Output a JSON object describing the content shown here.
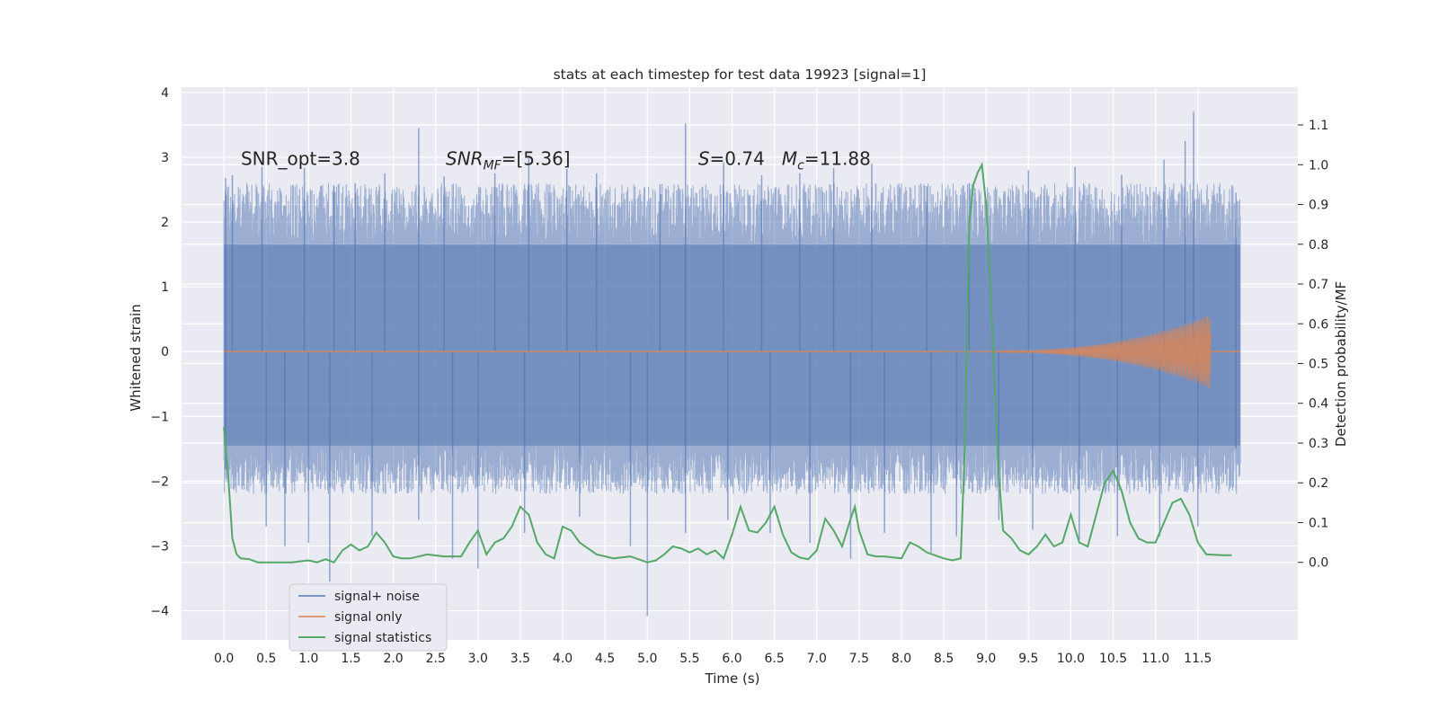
{
  "chart_data": {
    "type": "line",
    "title": "stats at each timestep for test data 19923 [signal=1]",
    "xlabel": "Time (s)",
    "ylabel": "Whitened strain",
    "y2label": "Detection probability/MF",
    "xlim": [
      -0.5,
      12.68
    ],
    "ylim": [
      -4.45,
      4.08
    ],
    "y2lim": [
      -0.195,
      1.195
    ],
    "x_ticks": [
      0.0,
      0.5,
      1.0,
      1.5,
      2.0,
      2.5,
      3.0,
      3.5,
      4.0,
      4.5,
      5.0,
      5.5,
      6.0,
      6.5,
      7.0,
      7.5,
      8.0,
      8.5,
      9.0,
      9.5,
      10.0,
      10.5,
      11.0,
      11.5
    ],
    "x_tick_labels": [
      "0.0",
      "0.5",
      "1.0",
      "1.5",
      "2.0",
      "2.5",
      "3.0",
      "3.5",
      "4.0",
      "4.5",
      "5.0",
      "5.5",
      "6.0",
      "6.5",
      "7.0",
      "7.5",
      "8.0",
      "8.5",
      "9.0",
      "9.5",
      "10.0",
      "10.5",
      "11.0",
      "11.5"
    ],
    "y_ticks": [
      -4,
      -3,
      -2,
      -1,
      0,
      1,
      2,
      3,
      4
    ],
    "y_tick_labels": [
      "−4",
      "−3",
      "−2",
      "−1",
      "0",
      "1",
      "2",
      "3",
      "4"
    ],
    "y2_ticks": [
      0.0,
      0.1,
      0.2,
      0.3,
      0.4,
      0.5,
      0.6,
      0.7,
      0.8,
      0.9,
      1.0,
      1.1
    ],
    "y2_tick_labels": [
      "0.0",
      "0.1",
      "0.2",
      "0.3",
      "0.4",
      "0.5",
      "0.6",
      "0.7",
      "0.8",
      "0.9",
      "1.0",
      "1.1"
    ],
    "grid": true,
    "legend_placement": "lower-left",
    "annotations": [
      {
        "label": "SNR_opt=3.8",
        "x": 0.2,
        "y": 2.88
      },
      {
        "label": "SNR",
        "sub": "MF",
        "rest": "=[5.36]",
        "x": 2.62,
        "y": 2.88
      },
      {
        "label": "S",
        "rest": "=0.74   ",
        "label2": "M",
        "sub2": "c",
        "rest2": "=11.88",
        "x": 5.6,
        "y": 2.88
      }
    ],
    "series": [
      {
        "name": "signal+ noise",
        "color": "#4c72b0",
        "opacity": 0.5,
        "x_range": [
          0.0,
          12.0
        ],
        "core_band": [
          -1.45,
          1.65
        ],
        "spikes": [
          {
            "x": 0.02,
            "y": 2.68
          },
          {
            "x": 0.1,
            "y": 2.72
          },
          {
            "x": 0.45,
            "y": 2.85
          },
          {
            "x": 0.95,
            "y": 2.83
          },
          {
            "x": 1.3,
            "y": 2.55
          },
          {
            "x": 1.55,
            "y": 2.6
          },
          {
            "x": 1.9,
            "y": 2.75
          },
          {
            "x": 2.3,
            "y": 3.45
          },
          {
            "x": 2.6,
            "y": 2.7
          },
          {
            "x": 3.2,
            "y": 2.75
          },
          {
            "x": 3.6,
            "y": 3.03
          },
          {
            "x": 4.05,
            "y": 2.82
          },
          {
            "x": 4.4,
            "y": 2.75
          },
          {
            "x": 5.15,
            "y": 2.58
          },
          {
            "x": 5.45,
            "y": 3.52
          },
          {
            "x": 5.9,
            "y": 2.92
          },
          {
            "x": 6.35,
            "y": 2.72
          },
          {
            "x": 6.8,
            "y": 2.75
          },
          {
            "x": 7.2,
            "y": 2.83
          },
          {
            "x": 7.65,
            "y": 2.9
          },
          {
            "x": 8.3,
            "y": 2.55
          },
          {
            "x": 8.8,
            "y": 2.6
          },
          {
            "x": 9.5,
            "y": 2.8
          },
          {
            "x": 10.05,
            "y": 2.85
          },
          {
            "x": 10.6,
            "y": 2.73
          },
          {
            "x": 11.1,
            "y": 2.96
          },
          {
            "x": 11.35,
            "y": 3.25
          },
          {
            "x": 11.45,
            "y": 3.7
          },
          {
            "x": 11.95,
            "y": 2.45
          },
          {
            "x": 0.02,
            "y": -1.82
          },
          {
            "x": 0.5,
            "y": -2.7
          },
          {
            "x": 0.72,
            "y": -3.0
          },
          {
            "x": 1.0,
            "y": -2.95
          },
          {
            "x": 1.25,
            "y": -3.55
          },
          {
            "x": 1.75,
            "y": -2.85
          },
          {
            "x": 2.3,
            "y": -2.6
          },
          {
            "x": 2.7,
            "y": -3.2
          },
          {
            "x": 3.0,
            "y": -3.35
          },
          {
            "x": 3.55,
            "y": -2.8
          },
          {
            "x": 4.2,
            "y": -2.55
          },
          {
            "x": 4.8,
            "y": -3.0
          },
          {
            "x": 5.0,
            "y": -4.08
          },
          {
            "x": 5.45,
            "y": -2.8
          },
          {
            "x": 5.95,
            "y": -2.6
          },
          {
            "x": 6.45,
            "y": -2.8
          },
          {
            "x": 6.92,
            "y": -2.95
          },
          {
            "x": 7.4,
            "y": -3.2
          },
          {
            "x": 7.8,
            "y": -2.8
          },
          {
            "x": 8.35,
            "y": -3.1
          },
          {
            "x": 8.65,
            "y": -2.85
          },
          {
            "x": 9.15,
            "y": -2.6
          },
          {
            "x": 9.55,
            "y": -2.75
          },
          {
            "x": 10.1,
            "y": -2.9
          },
          {
            "x": 10.55,
            "y": -2.85
          },
          {
            "x": 11.05,
            "y": -2.85
          },
          {
            "x": 11.5,
            "y": -2.7
          },
          {
            "x": 11.95,
            "y": -1.5
          }
        ]
      },
      {
        "name": "signal only",
        "color": "#dd8452",
        "chirp_start": 8.5,
        "chirp_end": 11.65,
        "chirp_peak_amplitude": 0.58,
        "x_range": [
          0.0,
          12.0
        ]
      },
      {
        "name": "signal statistics",
        "color": "#55a868",
        "axis": "right",
        "x": [
          0.0,
          0.05,
          0.1,
          0.15,
          0.2,
          0.3,
          0.4,
          0.5,
          0.6,
          0.8,
          1.0,
          1.1,
          1.2,
          1.3,
          1.4,
          1.5,
          1.6,
          1.7,
          1.8,
          1.9,
          2.0,
          2.1,
          2.2,
          2.4,
          2.6,
          2.8,
          2.9,
          3.0,
          3.1,
          3.2,
          3.3,
          3.4,
          3.5,
          3.6,
          3.7,
          3.8,
          3.9,
          4.0,
          4.1,
          4.2,
          4.4,
          4.6,
          4.8,
          5.0,
          5.1,
          5.2,
          5.3,
          5.4,
          5.5,
          5.6,
          5.7,
          5.8,
          5.9,
          6.0,
          6.1,
          6.2,
          6.3,
          6.4,
          6.5,
          6.6,
          6.7,
          6.8,
          6.9,
          7.0,
          7.1,
          7.2,
          7.3,
          7.4,
          7.45,
          7.5,
          7.6,
          7.7,
          7.8,
          8.0,
          8.1,
          8.2,
          8.3,
          8.5,
          8.6,
          8.7,
          8.75,
          8.8,
          8.85,
          8.9,
          8.95,
          9.0,
          9.05,
          9.1,
          9.15,
          9.2,
          9.3,
          9.4,
          9.5,
          9.6,
          9.7,
          9.8,
          9.9,
          10.0,
          10.1,
          10.2,
          10.3,
          10.4,
          10.5,
          10.6,
          10.7,
          10.8,
          10.9,
          11.0,
          11.1,
          11.2,
          11.3,
          11.4,
          11.5,
          11.6,
          11.8,
          11.9
        ],
        "values": [
          0.34,
          0.22,
          0.06,
          0.02,
          0.01,
          0.008,
          0.0,
          0.0,
          0.0,
          0.0,
          0.005,
          0.0,
          0.008,
          0.0,
          0.03,
          0.045,
          0.03,
          0.04,
          0.075,
          0.05,
          0.015,
          0.01,
          0.01,
          0.02,
          0.015,
          0.015,
          0.05,
          0.08,
          0.02,
          0.05,
          0.06,
          0.09,
          0.14,
          0.12,
          0.05,
          0.02,
          0.01,
          0.09,
          0.08,
          0.05,
          0.02,
          0.01,
          0.015,
          0.0,
          0.005,
          0.02,
          0.04,
          0.035,
          0.025,
          0.035,
          0.02,
          0.03,
          0.01,
          0.07,
          0.14,
          0.08,
          0.075,
          0.1,
          0.14,
          0.07,
          0.025,
          0.012,
          0.008,
          0.03,
          0.11,
          0.08,
          0.04,
          0.11,
          0.14,
          0.08,
          0.02,
          0.015,
          0.015,
          0.01,
          0.05,
          0.04,
          0.025,
          0.01,
          0.005,
          0.01,
          0.3,
          0.85,
          0.95,
          0.98,
          1.0,
          0.9,
          0.7,
          0.45,
          0.22,
          0.08,
          0.06,
          0.03,
          0.02,
          0.04,
          0.07,
          0.04,
          0.05,
          0.12,
          0.05,
          0.04,
          0.12,
          0.2,
          0.23,
          0.18,
          0.1,
          0.06,
          0.05,
          0.05,
          0.1,
          0.15,
          0.16,
          0.12,
          0.05,
          0.02,
          0.018,
          0.018
        ]
      }
    ]
  }
}
